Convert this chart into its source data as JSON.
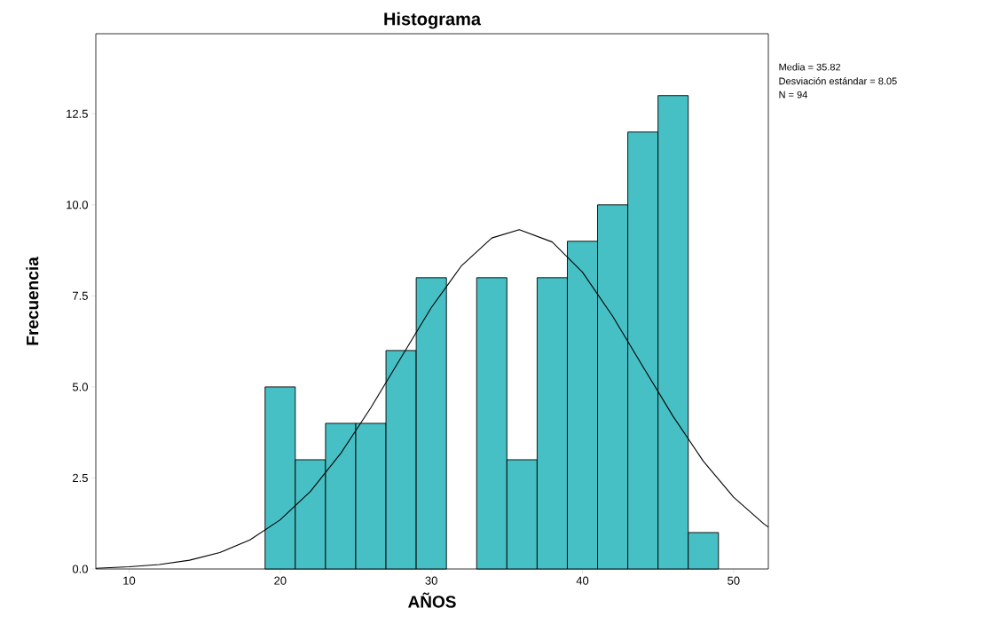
{
  "chart_data": {
    "type": "histogram",
    "title": "Histograma",
    "xlabel": "AÑOS",
    "ylabel": "Frecuencia",
    "bins": [
      19,
      21,
      23,
      25,
      27,
      29,
      31,
      33,
      35,
      37,
      39,
      41,
      43,
      45,
      47,
      49
    ],
    "values": [
      5,
      3,
      4,
      4,
      6,
      8,
      0,
      8,
      3,
      8,
      9,
      10,
      12,
      13,
      1
    ],
    "color": "#46c0c4",
    "series": [
      {
        "type": "line",
        "color": "#000000",
        "x": [
          7.8,
          10,
          12,
          14,
          16,
          18,
          20,
          22,
          24,
          26,
          28,
          30,
          32,
          34,
          35.82,
          38,
          40,
          42,
          44,
          46,
          48,
          50,
          52,
          52.3
        ],
        "values": [
          0.02,
          0.06,
          0.12,
          0.24,
          0.45,
          0.8,
          1.35,
          2.13,
          3.17,
          4.43,
          5.81,
          7.18,
          8.33,
          9.09,
          9.32,
          8.98,
          8.15,
          6.94,
          5.56,
          4.19,
          2.96,
          1.97,
          1.24,
          1.15
        ]
      }
    ],
    "xlim": [
      7.8,
      52.3
    ],
    "ylim": [
      0,
      14.7
    ],
    "xticks": [
      10,
      20,
      30,
      40,
      50
    ],
    "yticks": [
      {
        "value": 0,
        "label": "0.0"
      },
      {
        "value": 2.5,
        "label": "2.5"
      },
      {
        "value": 5,
        "label": "5.0"
      },
      {
        "value": 7.5,
        "label": "7.5"
      },
      {
        "value": 10,
        "label": "10.0"
      },
      {
        "value": 12.5,
        "label": "12.5"
      }
    ],
    "annotations": [
      "Media = 35.82",
      "Desviación estándar = 8.05",
      "N = 94"
    ]
  }
}
